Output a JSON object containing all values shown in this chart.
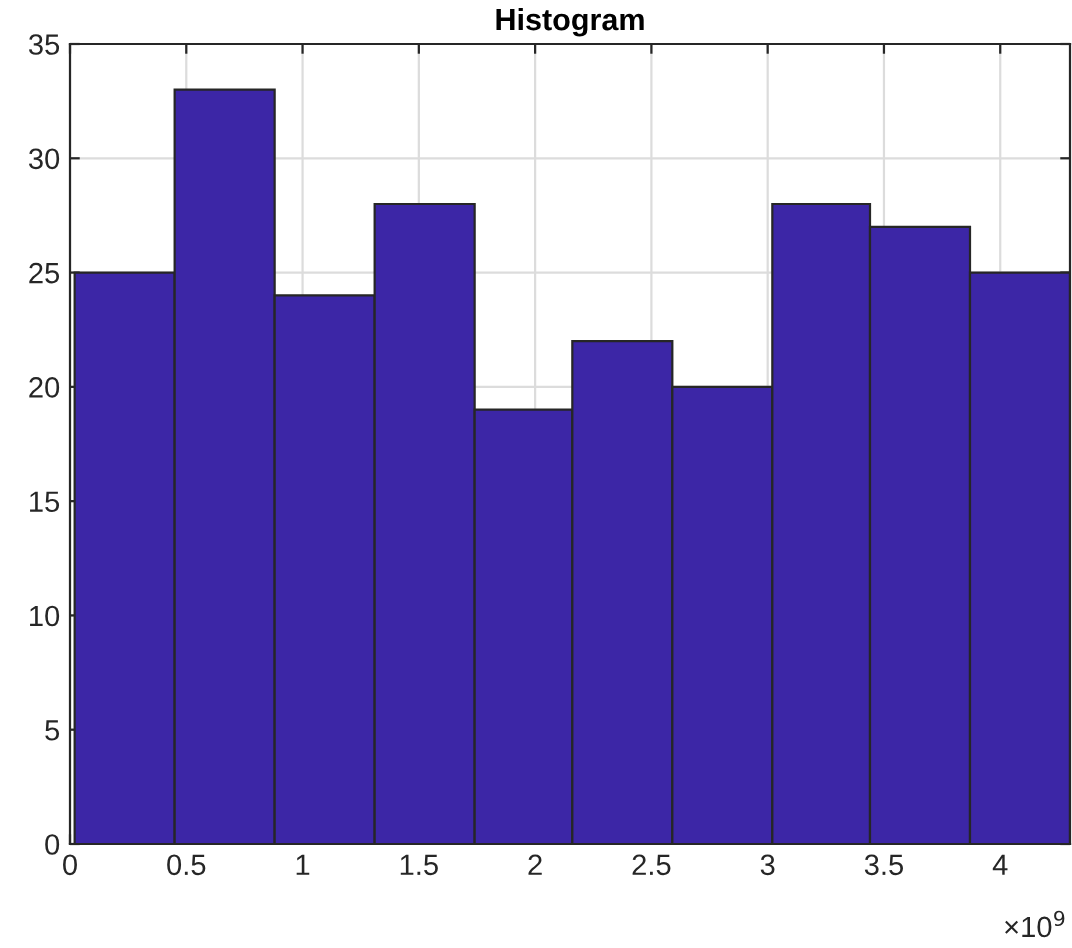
{
  "chart_data": {
    "type": "histogram",
    "title": "Histogram",
    "bins": [
      0.02,
      0.45,
      0.88,
      1.31,
      1.74,
      2.16,
      2.59,
      3.02,
      3.44,
      3.87,
      4.3
    ],
    "values": [
      25,
      33,
      24,
      28,
      19,
      22,
      20,
      28,
      27,
      25
    ],
    "color": "#3c26a6",
    "xlim": [
      0,
      4.3
    ],
    "xticks": [
      0,
      0.5,
      1,
      1.5,
      2,
      2.5,
      3,
      3.5,
      4
    ],
    "ylim": [
      0,
      35
    ],
    "yticks": [
      0,
      5,
      10,
      15,
      20,
      25,
      30,
      35
    ],
    "grid": true,
    "annotations": [
      "×10$^{9}$"
    ]
  }
}
